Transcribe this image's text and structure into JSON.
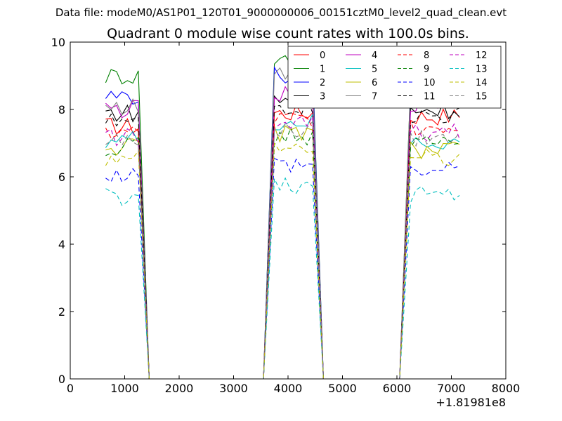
{
  "chart_data": {
    "type": "line",
    "suptitle": "Data file: modeM0/AS1P01_120T01_9000000006_00151cztM0_level2_quad_clean.evt",
    "title": "Quadrant 0 module wise count rates with 100.0s bins.",
    "xlabel": "",
    "ylabel": "",
    "x_offset_label": "+1.81981e8",
    "xlim": [
      0,
      8000
    ],
    "ylim": [
      0,
      10
    ],
    "xticks": [
      0,
      1000,
      2000,
      3000,
      4000,
      5000,
      6000,
      7000,
      8000
    ],
    "yticks": [
      0,
      2,
      4,
      6,
      8,
      10
    ],
    "grid": false,
    "legend": {
      "position": "top-right",
      "columns": 4
    },
    "segments": [
      {
        "x_start": 650,
        "x_end": 1250,
        "fall_end": 1450
      },
      {
        "x_start": 3750,
        "x_end": 4450,
        "rise_start": 3550,
        "fall_end": 4650
      },
      {
        "x_start": 6250,
        "x_end": 7150,
        "rise_start": 6050
      }
    ],
    "series": [
      {
        "name": "0",
        "color": "#ff0000",
        "dash": "solid",
        "levels": [
          7.5,
          7.9,
          7.8
        ]
      },
      {
        "name": "1",
        "color": "#008000",
        "dash": "solid",
        "levels": [
          9.0,
          9.5,
          8.6
        ]
      },
      {
        "name": "2",
        "color": "#0000ff",
        "dash": "solid",
        "levels": [
          8.4,
          9.0,
          8.5
        ]
      },
      {
        "name": "3",
        "color": "#000000",
        "dash": "solid",
        "levels": [
          7.9,
          8.3,
          8.0
        ]
      },
      {
        "name": "4",
        "color": "#bf00bf",
        "dash": "solid",
        "levels": [
          8.0,
          8.4,
          8.2
        ]
      },
      {
        "name": "5",
        "color": "#00bfbf",
        "dash": "solid",
        "levels": [
          7.1,
          7.6,
          7.0
        ]
      },
      {
        "name": "6",
        "color": "#bfbf00",
        "dash": "solid",
        "levels": [
          6.9,
          7.3,
          6.8
        ]
      },
      {
        "name": "7",
        "color": "#808080",
        "dash": "solid",
        "levels": [
          8.1,
          9.0,
          8.8
        ]
      },
      {
        "name": "8",
        "color": "#ff0000",
        "dash": "dashed",
        "levels": [
          7.3,
          7.7,
          7.5
        ]
      },
      {
        "name": "9",
        "color": "#008000",
        "dash": "dashed",
        "levels": [
          6.9,
          7.2,
          7.0
        ]
      },
      {
        "name": "10",
        "color": "#0000ff",
        "dash": "dashed",
        "levels": [
          6.1,
          6.4,
          6.2
        ]
      },
      {
        "name": "11",
        "color": "#000000",
        "dash": "dashed",
        "levels": [
          7.6,
          8.1,
          7.8
        ]
      },
      {
        "name": "12",
        "color": "#bf00bf",
        "dash": "dashed",
        "levels": [
          7.2,
          7.6,
          7.3
        ]
      },
      {
        "name": "13",
        "color": "#00bfbf",
        "dash": "dashed",
        "levels": [
          5.4,
          5.7,
          5.5
        ]
      },
      {
        "name": "14",
        "color": "#bfbf00",
        "dash": "dashed",
        "levels": [
          6.5,
          6.9,
          6.6
        ]
      },
      {
        "name": "15",
        "color": "#808080",
        "dash": "dashed",
        "levels": [
          7.0,
          7.4,
          7.1
        ]
      }
    ]
  }
}
